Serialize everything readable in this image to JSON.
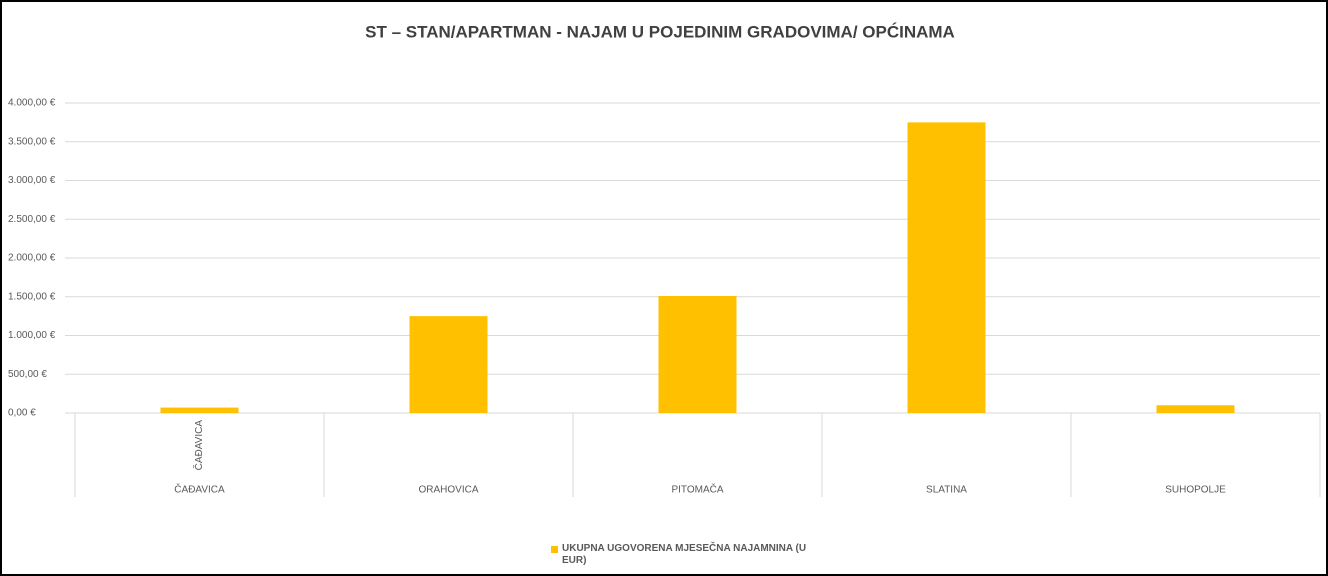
{
  "chart_data": {
    "type": "bar",
    "title": "ST – STAN/APARTMAN - NAJAM U POJEDINIM GRADOVIMA/ OPĆINAMA",
    "categories": [
      "ČAĐAVICA",
      "ORAHOVICA",
      "PITOMAČA",
      "SLATINA",
      "SUHOPOLJE"
    ],
    "sub_categories": [
      "ČAĐAVICA",
      null,
      null,
      null,
      null
    ],
    "series": [
      {
        "name": "UKUPNA UGOVORENA MJESEČNA NAJAMNINA (U EUR)",
        "color": "#ffc000",
        "values": [
          70,
          1250,
          1510,
          3750,
          100
        ]
      }
    ],
    "ylim": [
      0,
      4000
    ],
    "yticks": [
      {
        "value": 0,
        "label": "0,00 €"
      },
      {
        "value": 500,
        "label": "500,00 €"
      },
      {
        "value": 1000,
        "label": "1.000,00 €"
      },
      {
        "value": 1500,
        "label": "1.500,00 €"
      },
      {
        "value": 2000,
        "label": "2.000,00 €"
      },
      {
        "value": 2500,
        "label": "2.500,00 €"
      },
      {
        "value": 3000,
        "label": "3.000,00 €"
      },
      {
        "value": 3500,
        "label": "3.500,00 €"
      },
      {
        "value": 4000,
        "label": "4.000,00 €"
      }
    ],
    "grid": true,
    "legend": "bottom"
  }
}
